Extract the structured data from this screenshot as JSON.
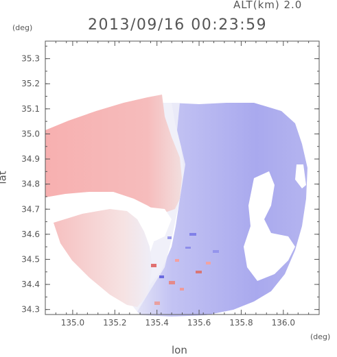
{
  "header": {
    "altitude": "ALT(km) 2.0",
    "datetime": "2013/09/16 00:23:59",
    "y_unit": "(deg)",
    "x_unit": "(deg)"
  },
  "chart_data": {
    "type": "heatmap",
    "description_text_shown": false,
    "xlabel": "lon",
    "ylabel": "lat",
    "xlim": [
      134.87,
      136.17
    ],
    "ylim": [
      34.28,
      35.37
    ],
    "x_ticks": [
      135.0,
      135.2,
      135.4,
      135.6,
      135.8,
      136.0
    ],
    "x_tick_labels": [
      "135.0",
      "135.2",
      "135.4",
      "135.6",
      "135.8",
      "136.0"
    ],
    "y_ticks": [
      34.3,
      34.4,
      34.5,
      34.6,
      34.7,
      34.8,
      34.9,
      35.0,
      35.1,
      35.2,
      35.3
    ],
    "y_tick_labels": [
      "34.3",
      "34.4",
      "34.5",
      "34.6",
      "34.7",
      "34.8",
      "34.9",
      "35.0",
      "35.1",
      "35.2",
      "35.3"
    ],
    "grid": false,
    "colors": {
      "receding": "#f4a7a7",
      "approaching": "#a9a9ef",
      "neutral": "#f3f3f8"
    }
  }
}
